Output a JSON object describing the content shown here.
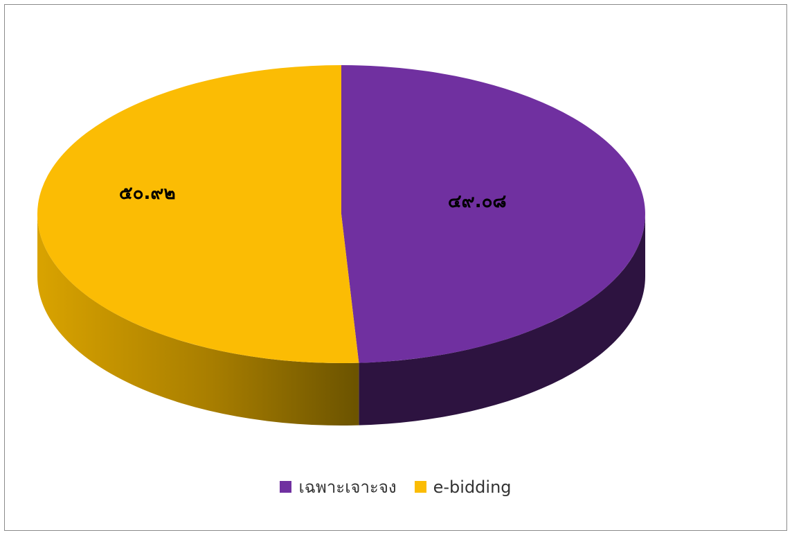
{
  "chart_data": {
    "type": "pie",
    "style": "3d",
    "title": "",
    "slices": [
      {
        "name": "เฉพาะเจาะจง",
        "value": 49.08,
        "label": "๔๙.๐๘",
        "color": "#7030a0",
        "side_color": "#2d1340"
      },
      {
        "name": "e-bidding",
        "value": 50.92,
        "label": "๕๐.๙๒",
        "color": "#fbbc04",
        "side_color": "#c99300"
      }
    ],
    "legend_position": "bottom"
  }
}
